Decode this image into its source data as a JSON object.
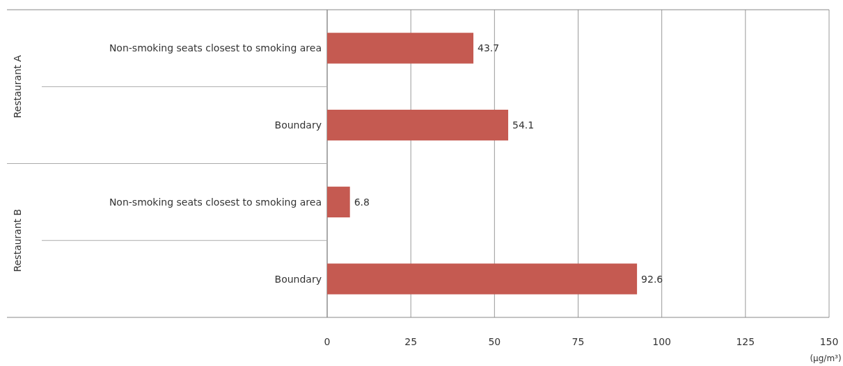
{
  "chart_data": {
    "type": "bar",
    "orientation": "horizontal",
    "categories": [
      "Non-smoking seats closest to smoking area",
      "Boundary",
      "Non-smoking seats closest to smoking area",
      "Boundary"
    ],
    "values": [
      43.7,
      54.1,
      6.8,
      92.6
    ],
    "color": "#c55a51",
    "xlim": [
      0,
      150
    ],
    "xticks": [
      0,
      25,
      50,
      75,
      100,
      125,
      150
    ],
    "xlabel": "(μg/m³)",
    "annotations": [
      "Restaurant A",
      "Restaurant B"
    ],
    "data_labels": true,
    "grid": "x"
  }
}
